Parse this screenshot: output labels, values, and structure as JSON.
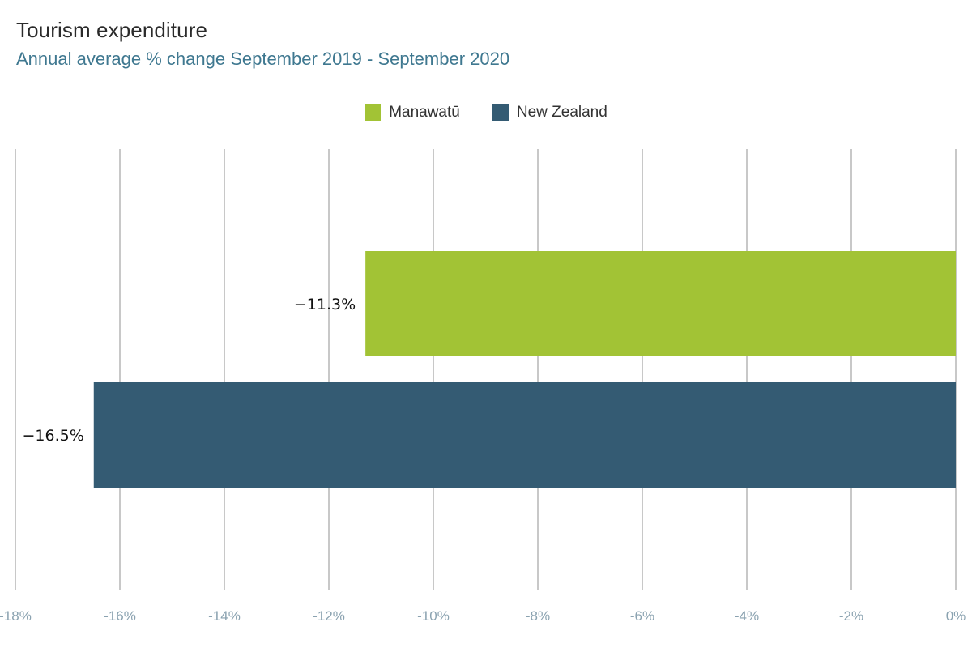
{
  "chart_data": {
    "type": "bar",
    "orientation": "horizontal",
    "title": "Tourism expenditure",
    "subtitle": "Annual average % change September 2019 - September 2020",
    "xlabel": "",
    "ylabel": "",
    "xlim": [
      -18,
      0
    ],
    "ticks": [
      {
        "value": -18,
        "label": "-18%"
      },
      {
        "value": -16,
        "label": "-16%"
      },
      {
        "value": -14,
        "label": "-14%"
      },
      {
        "value": -12,
        "label": "-12%"
      },
      {
        "value": -10,
        "label": "-10%"
      },
      {
        "value": -8,
        "label": "-8%"
      },
      {
        "value": -6,
        "label": "-6%"
      },
      {
        "value": -4,
        "label": "-4%"
      },
      {
        "value": -2,
        "label": "-2%"
      },
      {
        "value": 0,
        "label": "0%"
      }
    ],
    "grid": true,
    "legend_position": "top-center",
    "series": [
      {
        "name": "Manawatū",
        "value": -11.3,
        "label": "−11.3%",
        "color": "#a2c335"
      },
      {
        "name": "New Zealand",
        "value": -16.5,
        "label": "−16.5%",
        "color": "#345b73"
      }
    ]
  }
}
